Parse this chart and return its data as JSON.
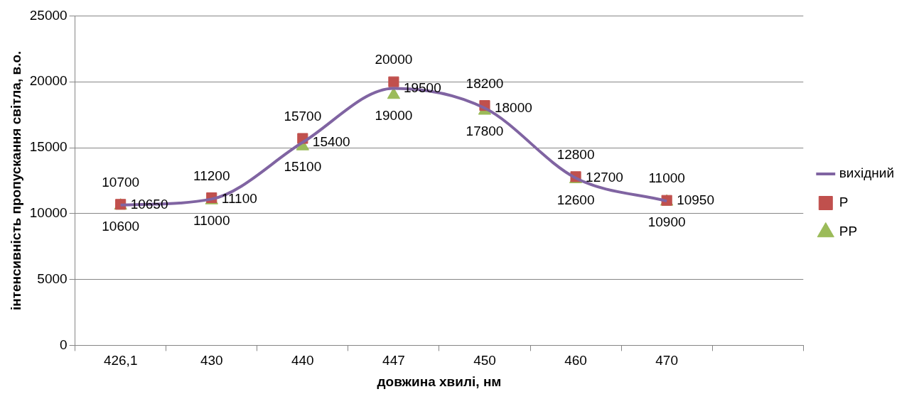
{
  "chart_data": {
    "type": "line",
    "xlabel": "довжина хвилі, нм",
    "ylabel": "інтенсивність пропускання світла, в.о.",
    "categories": [
      "426,1",
      "430",
      "440",
      "447",
      "450",
      "460",
      "470",
      null
    ],
    "series": [
      {
        "name": "вихідний",
        "type": "line",
        "color": "#8064a2",
        "marker": "none",
        "values": [
          10650,
          11100,
          15400,
          19500,
          18000,
          12700,
          10950,
          null
        ]
      },
      {
        "name": "P",
        "type": "scatter",
        "color": "#c0504d",
        "marker": "square",
        "values": [
          10700,
          11200,
          15700,
          20000,
          18200,
          12800,
          11000,
          null
        ]
      },
      {
        "name": "PP",
        "type": "scatter",
        "color": "#9bbb59",
        "marker": "triangle",
        "values": [
          10600,
          11000,
          15100,
          19000,
          17800,
          12600,
          10900,
          null
        ]
      }
    ],
    "ylim": [
      0,
      25000
    ],
    "yticks": [
      0,
      5000,
      10000,
      15000,
      20000,
      25000
    ],
    "grid": "y",
    "legend": "right",
    "data_labels": true
  }
}
